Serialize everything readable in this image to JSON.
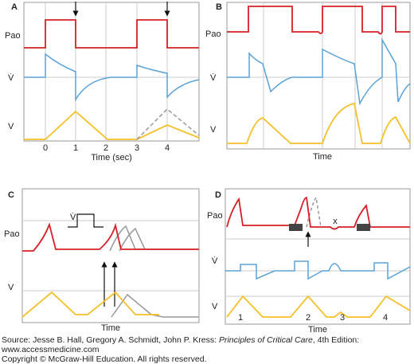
{
  "panels": [
    {
      "label": "A",
      "pao": "Pao",
      "flow": "V̇",
      "volume": "V",
      "ticks": [
        "0",
        "1",
        "2",
        "3",
        "4"
      ],
      "xlabel": "Time (sec)"
    },
    {
      "label": "B",
      "pao": "Pao",
      "flow": "V̇",
      "volume": "V",
      "xlabel": "Time"
    },
    {
      "label": "C",
      "pao": "Pao",
      "inset": "V̇",
      "volume": "V",
      "xlabel": "Time"
    },
    {
      "label": "D",
      "pao": "Pao",
      "flow": "V̇",
      "volume": "V",
      "marker": "x",
      "breaths": [
        "1",
        "2",
        "3",
        "4"
      ],
      "xlabel": "Time"
    }
  ],
  "source": {
    "prefix": "Source: Jesse B. Hall, Gregory A. Schmidt, John P. Kress: ",
    "book": "Principles of Critical Care",
    "suffix": ", 4th Edition:",
    "url": "www.accessmedicine.com",
    "copyright": "Copyright © McGraw-Hill Education. All rights reserved."
  }
}
